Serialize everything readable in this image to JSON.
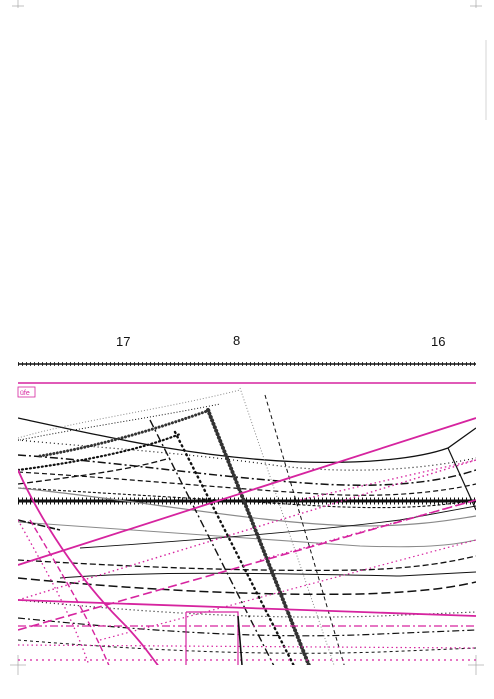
{
  "pattern_sheet": {
    "size_numbers": [
      "17",
      "8",
      "16"
    ],
    "cut_label_fragment": "üfe",
    "colors": {
      "ink": "#111111",
      "magenta": "#d6249f",
      "grey": "#8a8a8a",
      "paper": "#ffffff"
    }
  }
}
